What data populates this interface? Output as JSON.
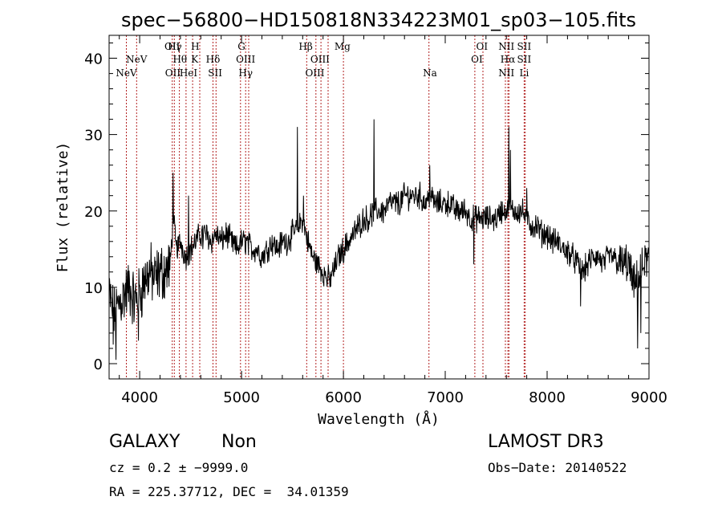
{
  "chart_data": {
    "type": "line",
    "title": "spec−56800−HD150818N334223M01_sp03−105.fits",
    "xlabel": "Wavelength (Å)",
    "ylabel": "Flux (relative)",
    "xlim": [
      3700,
      9000
    ],
    "ylim": [
      -2,
      43
    ],
    "xticks": [
      4000,
      5000,
      6000,
      7000,
      8000,
      9000
    ],
    "xtick_labels": [
      "4000",
      "5000",
      "6000",
      "7000",
      "8000",
      "9000"
    ],
    "yticks": [
      0,
      10,
      20,
      30,
      40
    ],
    "ytick_labels": [
      "0",
      "10",
      "20",
      "30",
      "40"
    ],
    "grid": false,
    "line_color": "#000000",
    "marker_color": "#b22222",
    "spectrum_anchors": [
      [
        3700,
        9
      ],
      [
        3750,
        6
      ],
      [
        3800,
        8
      ],
      [
        3850,
        9
      ],
      [
        3900,
        10
      ],
      [
        3950,
        8
      ],
      [
        4000,
        9
      ],
      [
        4050,
        11
      ],
      [
        4100,
        12
      ],
      [
        4150,
        11
      ],
      [
        4200,
        12
      ],
      [
        4250,
        12
      ],
      [
        4300,
        13
      ],
      [
        4330,
        19
      ],
      [
        4360,
        15
      ],
      [
        4400,
        16
      ],
      [
        4450,
        14
      ],
      [
        4500,
        15
      ],
      [
        4550,
        16
      ],
      [
        4600,
        17
      ],
      [
        4650,
        17
      ],
      [
        4700,
        16
      ],
      [
        4750,
        17
      ],
      [
        4800,
        16
      ],
      [
        4850,
        17
      ],
      [
        4900,
        16
      ],
      [
        4950,
        15
      ],
      [
        5000,
        16
      ],
      [
        5050,
        16
      ],
      [
        5100,
        15
      ],
      [
        5150,
        15
      ],
      [
        5200,
        14
      ],
      [
        5250,
        15
      ],
      [
        5300,
        16
      ],
      [
        5350,
        15
      ],
      [
        5400,
        16
      ],
      [
        5450,
        16
      ],
      [
        5500,
        17
      ],
      [
        5560,
        18
      ],
      [
        5600,
        19
      ],
      [
        5650,
        16
      ],
      [
        5700,
        14
      ],
      [
        5750,
        13
      ],
      [
        5800,
        12
      ],
      [
        5850,
        11
      ],
      [
        5900,
        12
      ],
      [
        5950,
        14
      ],
      [
        6000,
        15
      ],
      [
        6050,
        16
      ],
      [
        6100,
        17
      ],
      [
        6150,
        18
      ],
      [
        6200,
        19
      ],
      [
        6250,
        19
      ],
      [
        6300,
        20
      ],
      [
        6350,
        20
      ],
      [
        6400,
        20
      ],
      [
        6450,
        21
      ],
      [
        6500,
        21
      ],
      [
        6550,
        21
      ],
      [
        6600,
        22
      ],
      [
        6650,
        22
      ],
      [
        6700,
        22
      ],
      [
        6750,
        22
      ],
      [
        6800,
        21
      ],
      [
        6850,
        22
      ],
      [
        6900,
        21
      ],
      [
        6950,
        21
      ],
      [
        7000,
        21
      ],
      [
        7050,
        21
      ],
      [
        7100,
        20
      ],
      [
        7150,
        20
      ],
      [
        7200,
        20
      ],
      [
        7250,
        19
      ],
      [
        7300,
        19
      ],
      [
        7350,
        19
      ],
      [
        7400,
        19
      ],
      [
        7450,
        19
      ],
      [
        7500,
        19
      ],
      [
        7550,
        20
      ],
      [
        7600,
        20
      ],
      [
        7650,
        20
      ],
      [
        7700,
        20
      ],
      [
        7750,
        20
      ],
      [
        7800,
        19
      ],
      [
        7850,
        18
      ],
      [
        7900,
        18
      ],
      [
        7950,
        17
      ],
      [
        8000,
        17
      ],
      [
        8050,
        16
      ],
      [
        8100,
        16
      ],
      [
        8150,
        15
      ],
      [
        8200,
        15
      ],
      [
        8250,
        14
      ],
      [
        8300,
        13
      ],
      [
        8350,
        12
      ],
      [
        8400,
        13
      ],
      [
        8450,
        14
      ],
      [
        8500,
        14
      ],
      [
        8550,
        13
      ],
      [
        8600,
        14
      ],
      [
        8650,
        14
      ],
      [
        8700,
        13
      ],
      [
        8750,
        13
      ],
      [
        8800,
        13
      ],
      [
        8850,
        10
      ],
      [
        8900,
        11
      ],
      [
        8950,
        13
      ],
      [
        9000,
        14
      ]
    ],
    "spectrum_spikes": [
      [
        3740,
        2.5
      ],
      [
        3770,
        0.5
      ],
      [
        3990,
        3
      ],
      [
        4330,
        25
      ],
      [
        4480,
        22
      ],
      [
        4620,
        15
      ],
      [
        5550,
        31
      ],
      [
        5610,
        22
      ],
      [
        5870,
        10
      ],
      [
        6300,
        32
      ],
      [
        6850,
        26
      ],
      [
        7280,
        13
      ],
      [
        7625,
        31
      ],
      [
        7640,
        28
      ],
      [
        7800,
        23
      ],
      [
        8200,
        13
      ],
      [
        8330,
        7.5
      ],
      [
        8890,
        2
      ],
      [
        8920,
        4
      ]
    ],
    "line_markers": [
      {
        "label": "NeV",
        "wavelength": 3869,
        "row": 3
      },
      {
        "label": "NeV",
        "wavelength": 3970,
        "row": 2
      },
      {
        "label": "OII",
        "wavelength": 4320,
        "row": 1
      },
      {
        "label": "Hγ",
        "wavelength": 4345,
        "row": 1
      },
      {
        "label": "H",
        "wavelength": 4545,
        "row": 1
      },
      {
        "label": "Hθ",
        "wavelength": 4395,
        "row": 2
      },
      {
        "label": "K",
        "wavelength": 4540,
        "row": 2
      },
      {
        "label": "Hδ",
        "wavelength": 4720,
        "row": 2
      },
      {
        "label": "OII",
        "wavelength": 4325,
        "row": 3
      },
      {
        "label": "HeI",
        "wavelength": 4480,
        "row": 3
      },
      {
        "label": "SII",
        "wavelength": 4740,
        "row": 3
      },
      {
        "label": "G",
        "wavelength": 5000,
        "row": 1
      },
      {
        "label": "OIII",
        "wavelength": 5040,
        "row": 2
      },
      {
        "label": "Hγ",
        "wavelength": 5040,
        "row": 3
      },
      {
        "label": "Hβ",
        "wavelength": 5630,
        "row": 1
      },
      {
        "label": "Mg",
        "wavelength": 5990,
        "row": 1
      },
      {
        "label": "OIII",
        "wavelength": 5770,
        "row": 2
      },
      {
        "label": "OIII",
        "wavelength": 5720,
        "row": 3
      },
      {
        "label": "Na",
        "wavelength": 6850,
        "row": 3
      },
      {
        "label": "OI",
        "wavelength": 7360,
        "row": 1
      },
      {
        "label": "OI",
        "wavelength": 7310,
        "row": 2
      },
      {
        "label": "NII",
        "wavelength": 7600,
        "row": 1
      },
      {
        "label": "SII",
        "wavelength": 7775,
        "row": 1
      },
      {
        "label": "Hα",
        "wavelength": 7615,
        "row": 2
      },
      {
        "label": "SII",
        "wavelength": 7775,
        "row": 2
      },
      {
        "label": "NII",
        "wavelength": 7600,
        "row": 3
      },
      {
        "label": "Li",
        "wavelength": 7775,
        "row": 3
      }
    ],
    "marker_lines": [
      3869,
      3970,
      4320,
      4340,
      4390,
      4455,
      4520,
      4590,
      4720,
      4750,
      4990,
      5040,
      5070,
      5640,
      5730,
      5780,
      5850,
      6000,
      6840,
      7290,
      7370,
      7590,
      7615,
      7625,
      7775,
      7785
    ]
  },
  "footer": {
    "object_class": "GALAXY",
    "subclass": "Non",
    "survey": "LAMOST DR3",
    "redshift_line": "cz = 0.2 ± −9999.0",
    "obs_date_line": "Obs−Date: 20140522",
    "coords_line": "RA = 225.37712, DEC =  34.01359"
  }
}
